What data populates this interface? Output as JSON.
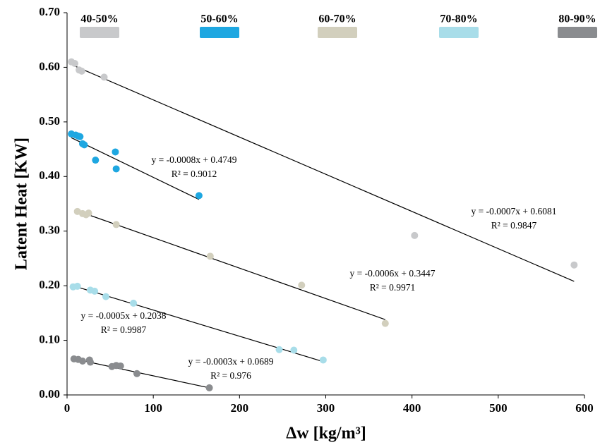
{
  "chart_data": {
    "type": "scatter",
    "ylabel": "Latent Heat [KW]",
    "xlabel": "Δw  [kg/m³]",
    "xlim": [
      0,
      600
    ],
    "xticks": [
      0,
      100,
      200,
      300,
      400,
      500,
      600
    ],
    "ylim": [
      0,
      0.7
    ],
    "yticks": [
      {
        "value": 0,
        "label": "0.00"
      },
      {
        "value": 0.1,
        "label": "0.10"
      },
      {
        "value": 0.2,
        "label": "0.20"
      },
      {
        "value": 0.3,
        "label": "0.30"
      },
      {
        "value": 0.4,
        "label": "0.40"
      },
      {
        "value": 0.5,
        "label": "0.50"
      },
      {
        "value": 0.6,
        "label": "0.60"
      },
      {
        "value": 0.7,
        "label": "0.70"
      }
    ],
    "series": [
      {
        "name": "40-50%",
        "color": "#c8c9cb",
        "x": [
          5,
          9,
          14,
          17,
          43,
          403,
          588
        ],
        "y": [
          0.61,
          0.607,
          0.595,
          0.593,
          0.582,
          0.292,
          0.238
        ],
        "trend": {
          "x": [
            5,
            588
          ],
          "y": [
            0.605,
            0.208
          ]
        },
        "equation": "y = -0.0007x + 0.6081",
        "r2": "R² = 0.9847"
      },
      {
        "name": "50-60%",
        "color": "#1ea7e1",
        "x": [
          5,
          10,
          13,
          15,
          18,
          20,
          33,
          56,
          57,
          153
        ],
        "y": [
          0.478,
          0.476,
          0.474,
          0.473,
          0.46,
          0.458,
          0.43,
          0.445,
          0.414,
          0.365
        ],
        "trend": {
          "x": [
            5,
            153
          ],
          "y": [
            0.471,
            0.358
          ]
        },
        "equation": "y = -0.0008x + 0.4749",
        "r2": "R² = 0.9012"
      },
      {
        "name": "60-70%",
        "color": "#d2cfbd",
        "x": [
          12,
          18,
          22,
          25,
          57,
          166,
          272,
          369
        ],
        "y": [
          0.336,
          0.332,
          0.33,
          0.333,
          0.312,
          0.254,
          0.201,
          0.131
        ],
        "trend": {
          "x": [
            12,
            369
          ],
          "y": [
            0.337,
            0.138
          ]
        },
        "equation": "y = -0.0006x + 0.3447",
        "r2": "R² = 0.9971"
      },
      {
        "name": "70-80%",
        "color": "#a8dde9",
        "x": [
          7,
          12,
          27,
          32,
          45,
          77,
          246,
          263,
          297
        ],
        "y": [
          0.198,
          0.199,
          0.192,
          0.19,
          0.18,
          0.168,
          0.083,
          0.082,
          0.064
        ],
        "trend": {
          "x": [
            7,
            297
          ],
          "y": [
            0.2,
            0.061
          ]
        },
        "equation": "y = -0.0005x + 0.2038",
        "r2": "R² = 0.9987"
      },
      {
        "name": "80-90%",
        "color": "#8a8c8f",
        "x": [
          8,
          13,
          18,
          26,
          27,
          52,
          57,
          62,
          81,
          165
        ],
        "y": [
          0.066,
          0.065,
          0.062,
          0.064,
          0.06,
          0.052,
          0.054,
          0.053,
          0.039,
          0.013
        ],
        "trend": {
          "x": [
            8,
            165
          ],
          "y": [
            0.066,
            0.013
          ]
        },
        "equation": "y = -0.0003x + 0.0689",
        "r2": "R² = 0.976"
      }
    ]
  }
}
